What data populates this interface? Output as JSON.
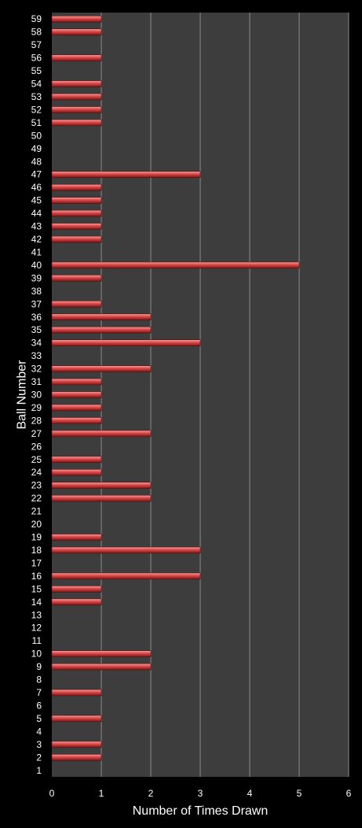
{
  "colors": {
    "background": "#000000",
    "plot_area": "#3d3d3d",
    "gridline": "#8a8a8a",
    "bar_top": "#f4a0a0",
    "bar_mid": "#d94848",
    "bar_bottom": "#7a1414",
    "text": "#ffffff"
  },
  "chart_data": {
    "type": "bar",
    "orientation": "horizontal",
    "title": "",
    "xlabel": "Number of Times Drawn",
    "ylabel": "Ball Number",
    "xlim": [
      0,
      6
    ],
    "x_ticks": [
      "0",
      "1",
      "2",
      "3",
      "4",
      "5",
      "6"
    ],
    "grid": "vertical",
    "legend": "none",
    "categories": [
      "1",
      "2",
      "3",
      "4",
      "5",
      "6",
      "7",
      "8",
      "9",
      "10",
      "11",
      "12",
      "13",
      "14",
      "15",
      "16",
      "17",
      "18",
      "19",
      "20",
      "21",
      "22",
      "23",
      "24",
      "25",
      "26",
      "27",
      "28",
      "29",
      "30",
      "31",
      "32",
      "33",
      "34",
      "35",
      "36",
      "37",
      "38",
      "39",
      "40",
      "41",
      "42",
      "43",
      "44",
      "45",
      "46",
      "47",
      "48",
      "49",
      "50",
      "51",
      "52",
      "53",
      "54",
      "55",
      "56",
      "57",
      "58",
      "59"
    ],
    "values": [
      0,
      1,
      1,
      0,
      1,
      0,
      1,
      0,
      2,
      2,
      0,
      0,
      0,
      1,
      1,
      3,
      0,
      3,
      1,
      0,
      0,
      2,
      2,
      1,
      1,
      0,
      2,
      1,
      1,
      1,
      1,
      2,
      0,
      3,
      2,
      2,
      1,
      0,
      1,
      5,
      0,
      1,
      1,
      1,
      1,
      1,
      3,
      0,
      0,
      0,
      1,
      1,
      1,
      1,
      0,
      1,
      0,
      1,
      1
    ]
  }
}
